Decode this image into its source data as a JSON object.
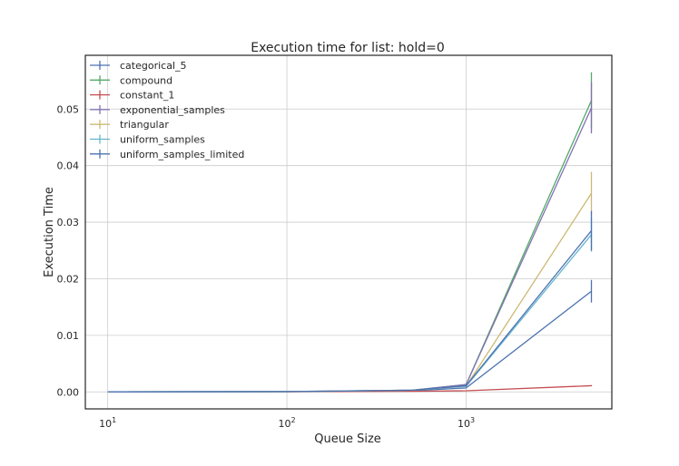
{
  "chart_data": {
    "type": "line",
    "title": "Execution time for list: hold=0",
    "xlabel": "Queue Size",
    "ylabel": "Execution Time",
    "xscale": "log",
    "xlim": [
      7.5,
      6500
    ],
    "ylim": [
      -0.003,
      0.0595
    ],
    "grid": true,
    "legend_position": "top-left",
    "x_ticks": [
      {
        "value": 10,
        "base": "10",
        "exp": "1"
      },
      {
        "value": 100,
        "base": "10",
        "exp": "2"
      },
      {
        "value": 1000,
        "base": "10",
        "exp": "3"
      }
    ],
    "y_ticks": [
      {
        "value": 0,
        "label": "0.00"
      },
      {
        "value": 0.01,
        "label": "0.01"
      },
      {
        "value": 0.02,
        "label": "0.02"
      },
      {
        "value": 0.03,
        "label": "0.03"
      },
      {
        "value": 0.04,
        "label": "0.04"
      },
      {
        "value": 0.05,
        "label": "0.05"
      }
    ],
    "x": [
      10,
      100,
      500,
      1000,
      5000
    ],
    "series": [
      {
        "name": "categorical_5",
        "color": "#4c72b0",
        "values": [
          1e-05,
          5e-05,
          0.0002,
          0.0007,
          0.0178
        ],
        "errors": [
          0,
          0,
          0,
          0.0001,
          0.002
        ]
      },
      {
        "name": "compound",
        "color": "#55a868",
        "values": [
          1e-05,
          6e-05,
          0.0003,
          0.0013,
          0.0515
        ],
        "errors": [
          0,
          0,
          0,
          0.0002,
          0.005
        ]
      },
      {
        "name": "constant_1",
        "color": "#c44e52",
        "values": [
          1e-05,
          3e-05,
          0.0001,
          0.0002,
          0.0011
        ],
        "errors": [
          0,
          0,
          0,
          0,
          0.0001
        ]
      },
      {
        "name": "exponential_samples",
        "color": "#8172b2",
        "values": [
          1e-05,
          6e-05,
          0.0003,
          0.0013,
          0.0502
        ],
        "errors": [
          0,
          0,
          0,
          0.0002,
          0.0045
        ]
      },
      {
        "name": "triangular",
        "color": "#ccb974",
        "values": [
          1e-05,
          5e-05,
          0.0003,
          0.001,
          0.0351
        ],
        "errors": [
          0,
          0,
          0,
          0.0002,
          0.0038
        ]
      },
      {
        "name": "uniform_samples",
        "color": "#64b5cd",
        "values": [
          1e-05,
          5e-05,
          0.0003,
          0.001,
          0.0278
        ],
        "errors": [
          0,
          0,
          0,
          0.0002,
          0.003
        ]
      },
      {
        "name": "uniform_samples_limited",
        "color": "#4c72b0",
        "values": [
          1e-05,
          5e-05,
          0.0003,
          0.0011,
          0.0285
        ],
        "errors": [
          0,
          0,
          0,
          0.0002,
          0.0035
        ]
      }
    ]
  }
}
